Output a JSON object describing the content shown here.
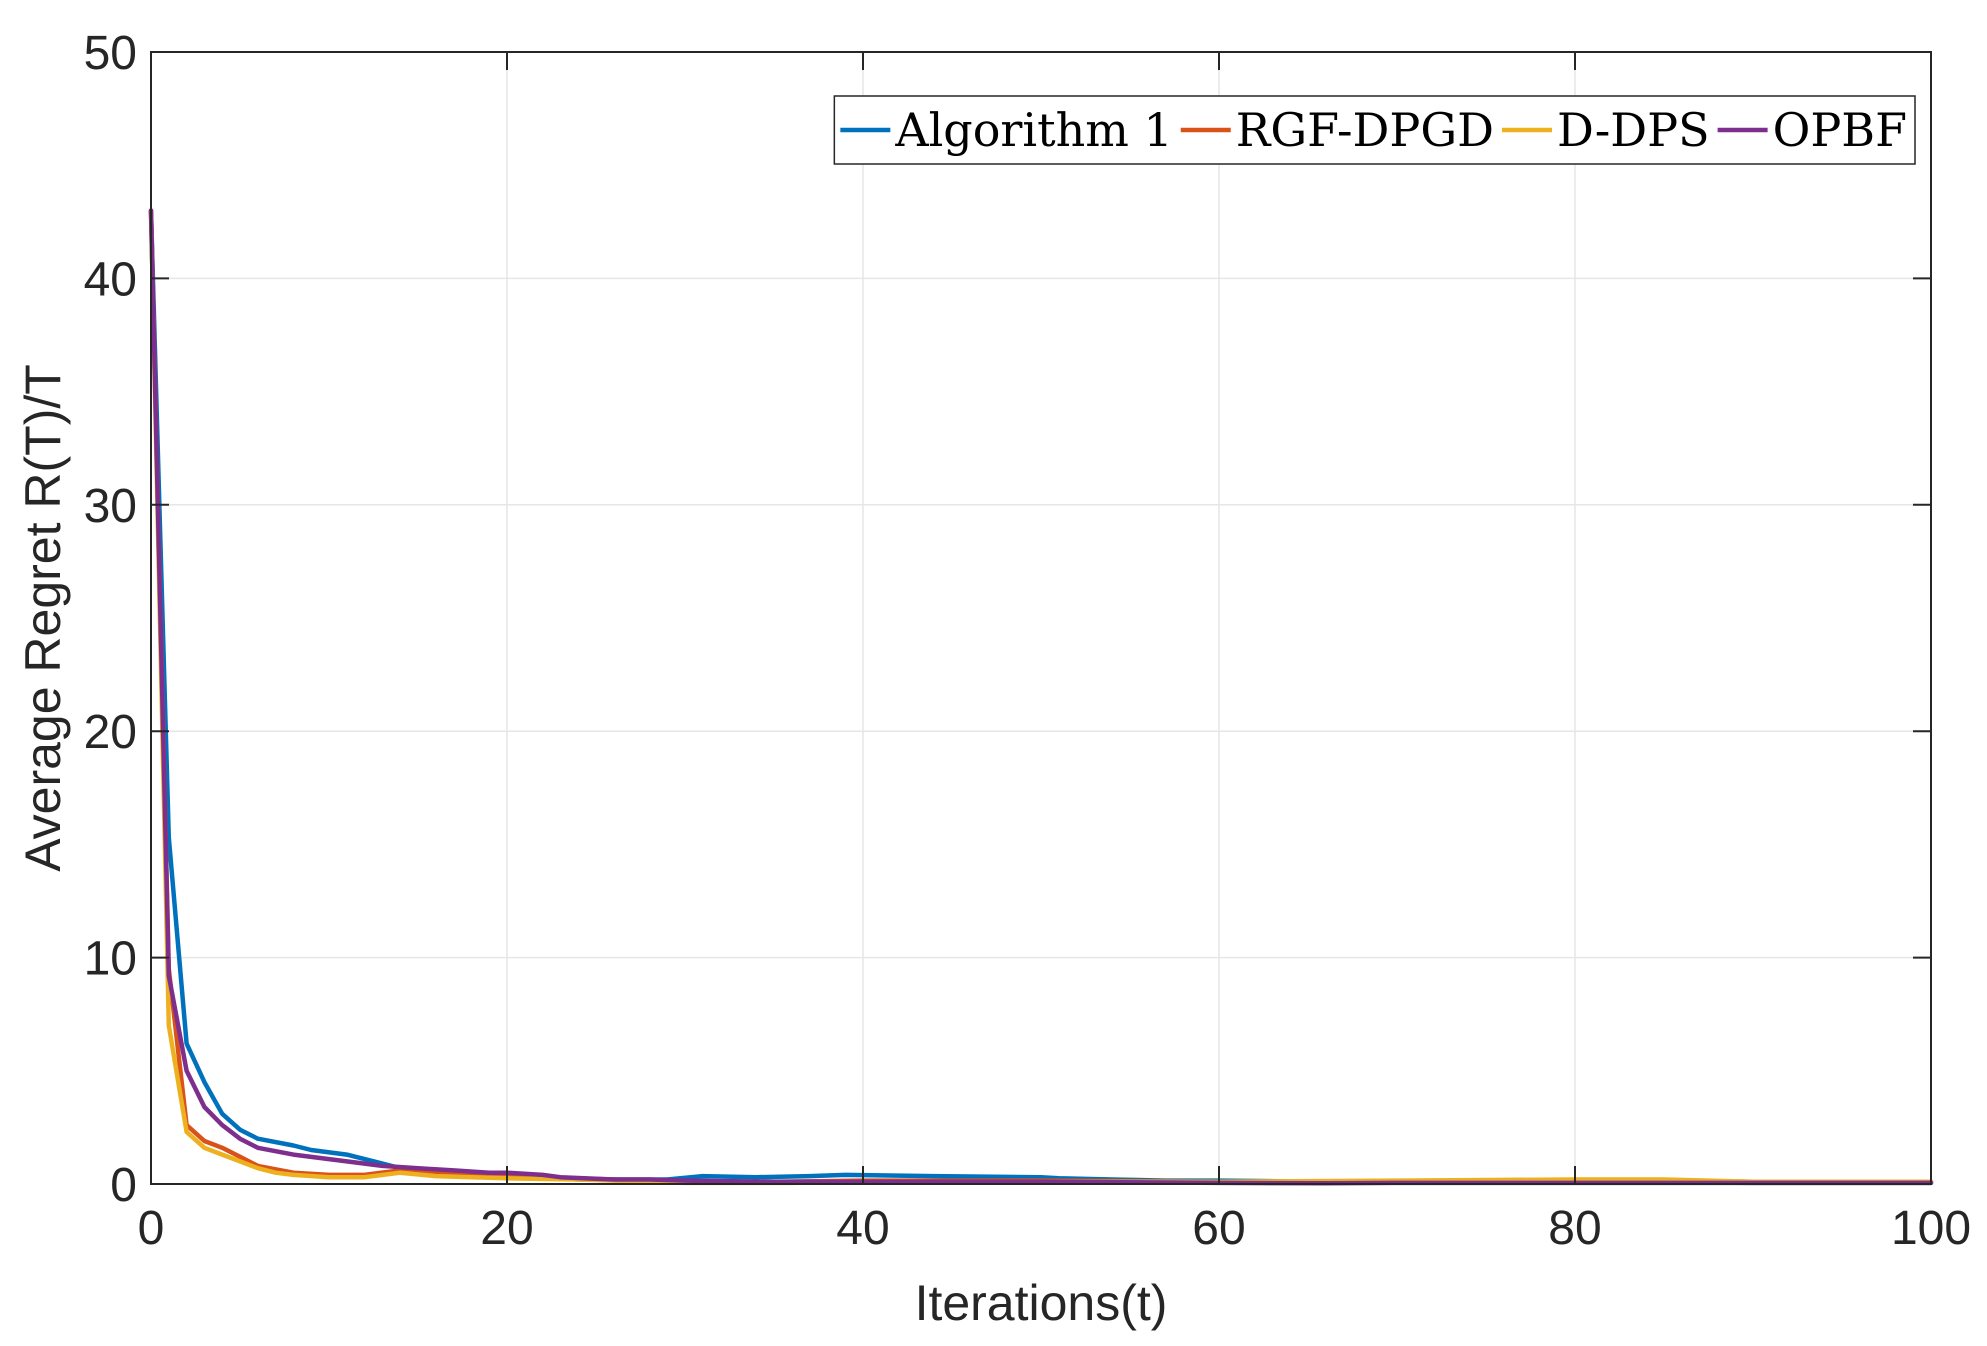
{
  "chart_data": {
    "type": "line",
    "xlabel": "Iterations(t)",
    "ylabel": "Average Regret R(T)/T",
    "xlim": [
      0,
      100
    ],
    "ylim": [
      0,
      50
    ],
    "xticks": [
      0,
      20,
      40,
      60,
      80,
      100
    ],
    "yticks": [
      0,
      10,
      20,
      30,
      40,
      50
    ],
    "grid": true,
    "legend_position": "top-right",
    "series": [
      {
        "name": "Algorithm 1",
        "color": "#0072BD",
        "x": [
          0,
          1,
          2,
          3,
          4,
          5,
          6,
          8,
          9,
          11,
          13,
          14,
          16,
          18,
          20,
          22,
          24,
          26,
          28,
          29,
          31,
          34,
          37,
          39,
          44,
          50,
          51,
          54,
          57,
          60,
          66,
          70,
          80,
          90,
          100
        ],
        "y": [
          43,
          15.3,
          6.2,
          4.5,
          3.1,
          2.4,
          2.0,
          1.7,
          1.5,
          1.3,
          0.9,
          0.7,
          0.6,
          0.5,
          0.4,
          0.3,
          0.2,
          0.2,
          0.2,
          0.2,
          0.35,
          0.3,
          0.35,
          0.4,
          0.35,
          0.3,
          0.25,
          0.2,
          0.15,
          0.15,
          0.1,
          0.1,
          0.1,
          0.05,
          0.05
        ]
      },
      {
        "name": "RGF-DPGD",
        "color": "#D95319",
        "x": [
          0,
          1,
          2,
          3,
          4,
          5,
          6,
          8,
          10,
          12,
          14,
          16,
          18,
          20,
          22,
          26,
          30,
          35,
          40,
          50,
          60,
          70,
          80,
          85,
          90,
          100
        ],
        "y": [
          43,
          9.5,
          2.6,
          1.9,
          1.6,
          1.2,
          0.8,
          0.5,
          0.4,
          0.4,
          0.6,
          0.5,
          0.4,
          0.4,
          0.3,
          0.2,
          0.1,
          0.1,
          0.15,
          0.15,
          0.1,
          0.1,
          0.15,
          0.15,
          0.1,
          0.1
        ]
      },
      {
        "name": "D-DPS",
        "color": "#EDB120",
        "x": [
          0,
          1,
          2,
          3,
          4,
          5,
          6,
          7,
          8,
          10,
          12,
          14,
          16,
          18,
          20,
          24,
          28,
          30,
          36,
          40,
          50,
          60,
          70,
          80,
          85,
          90,
          100
        ],
        "y": [
          43,
          7.0,
          2.3,
          1.6,
          1.3,
          1.0,
          0.7,
          0.5,
          0.4,
          0.3,
          0.3,
          0.5,
          0.35,
          0.3,
          0.25,
          0.2,
          0.1,
          0.05,
          0.05,
          0.1,
          0.1,
          0.1,
          0.15,
          0.2,
          0.2,
          0.1,
          0.1
        ]
      },
      {
        "name": "OPBF",
        "color": "#7E2F8E",
        "x": [
          0,
          1,
          2,
          3,
          4,
          5,
          6,
          8,
          10,
          12,
          13,
          15,
          17,
          19,
          20,
          22,
          23,
          26,
          28,
          30,
          35,
          40,
          50,
          60,
          66,
          70,
          80,
          90,
          100
        ],
        "y": [
          43,
          9.2,
          5.0,
          3.4,
          2.6,
          2.0,
          1.6,
          1.3,
          1.1,
          0.9,
          0.8,
          0.7,
          0.6,
          0.5,
          0.5,
          0.4,
          0.3,
          0.2,
          0.2,
          0.15,
          0.1,
          0.1,
          0.1,
          0.05,
          0.03,
          0.05,
          0.05,
          0.05,
          0.05
        ]
      }
    ]
  }
}
